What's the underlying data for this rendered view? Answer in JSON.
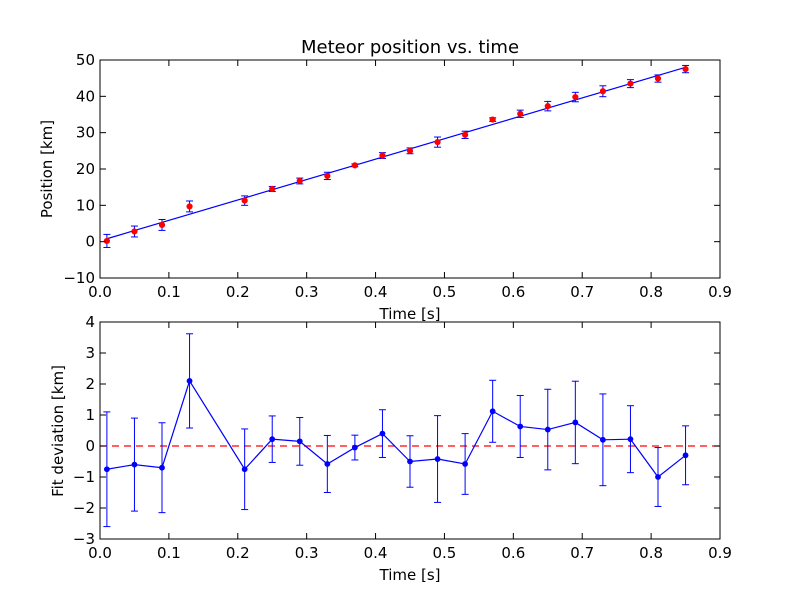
{
  "chart_data": [
    {
      "type": "scatter",
      "title": "Meteor position vs. time",
      "xlabel": "Time [s]",
      "ylabel": "Position [km]",
      "xlim": [
        0.0,
        0.9
      ],
      "ylim": [
        -10,
        50
      ],
      "xticks": [
        "0.0",
        "0.1",
        "0.2",
        "0.3",
        "0.4",
        "0.5",
        "0.6",
        "0.7",
        "0.8",
        "0.9"
      ],
      "yticks": [
        "−10",
        "0",
        "10",
        "20",
        "30",
        "40",
        "50"
      ],
      "grid": false,
      "series": [
        {
          "style": "points-with-errorbars",
          "marker_color": "#ff0000",
          "errorbar_color": "#0000ff",
          "x": [
            0.01,
            0.05,
            0.09,
            0.13,
            0.21,
            0.25,
            0.29,
            0.33,
            0.37,
            0.41,
            0.45,
            0.49,
            0.53,
            0.57,
            0.61,
            0.65,
            0.69,
            0.73,
            0.77,
            0.81,
            0.85
          ],
          "y": [
            0.2,
            2.8,
            4.6,
            9.7,
            11.3,
            14.5,
            16.7,
            18.1,
            21.0,
            23.7,
            25.0,
            27.4,
            29.4,
            33.6,
            35.2,
            37.3,
            39.8,
            41.4,
            43.5,
            44.9,
            47.5
          ],
          "err": [
            1.8,
            1.5,
            1.5,
            1.5,
            1.3,
            0.7,
            0.8,
            1.0,
            0.4,
            0.8,
            0.8,
            1.4,
            1.0,
            0.5,
            1.0,
            1.3,
            1.3,
            1.5,
            1.1,
            1.0,
            1.0
          ]
        },
        {
          "style": "line",
          "line_color": "#0000ff",
          "x": [
            0.01,
            0.85
          ],
          "y": [
            0.8,
            48.0
          ]
        }
      ]
    },
    {
      "type": "line",
      "xlabel": "Time [s]",
      "ylabel": "Fit deviation [km]",
      "xlim": [
        0.0,
        0.9
      ],
      "ylim": [
        -3,
        4
      ],
      "xticks": [
        "0.0",
        "0.1",
        "0.2",
        "0.3",
        "0.4",
        "0.5",
        "0.6",
        "0.7",
        "0.8",
        "0.9"
      ],
      "yticks": [
        "−3",
        "−2",
        "−1",
        "0",
        "1",
        "2",
        "3",
        "4"
      ],
      "grid": false,
      "series": [
        {
          "style": "line-with-errorbars",
          "line_color": "#0000ff",
          "x": [
            0.01,
            0.05,
            0.09,
            0.13,
            0.21,
            0.25,
            0.29,
            0.33,
            0.37,
            0.41,
            0.45,
            0.49,
            0.53,
            0.57,
            0.61,
            0.65,
            0.69,
            0.73,
            0.77,
            0.81,
            0.85
          ],
          "y": [
            -0.75,
            -0.6,
            -0.7,
            2.1,
            -0.75,
            0.22,
            0.15,
            -0.58,
            -0.05,
            0.4,
            -0.5,
            -0.42,
            -0.58,
            1.12,
            0.63,
            0.53,
            0.76,
            0.2,
            0.22,
            -1.0,
            -0.3
          ],
          "err": [
            1.85,
            1.5,
            1.45,
            1.52,
            1.3,
            0.75,
            0.77,
            0.92,
            0.4,
            0.77,
            0.83,
            1.4,
            0.98,
            1.0,
            1.0,
            1.3,
            1.33,
            1.48,
            1.08,
            0.95,
            0.95
          ]
        },
        {
          "style": "dashed-line",
          "line_color": "#ff0000",
          "x": [
            0.0,
            0.9
          ],
          "y": [
            0,
            0
          ]
        }
      ]
    }
  ]
}
